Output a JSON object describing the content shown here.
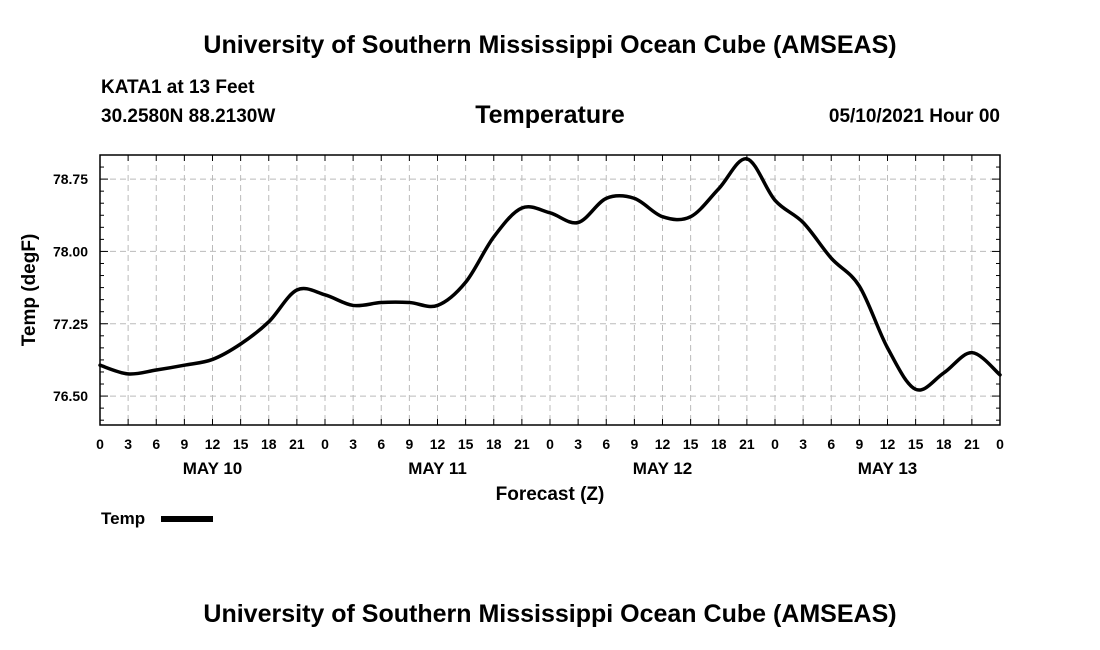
{
  "header": {
    "main_title": "University of Southern Mississippi Ocean Cube (AMSEAS)",
    "station": "KATA1 at 13 Feet",
    "coords": "30.2580N  88.2130W",
    "chart_title": "Temperature",
    "datetime": "05/10/2021 Hour 00"
  },
  "footer": {
    "title": "University of Southern Mississippi Ocean Cube (AMSEAS)"
  },
  "legend": {
    "label": "Temp",
    "color": "#000000"
  },
  "chart_data": {
    "type": "line",
    "title": "Temperature",
    "xlabel": "Forecast (Z)",
    "ylabel": "Temp (degF)",
    "ylim": [
      76.2,
      79.0
    ],
    "xlim": [
      0,
      96
    ],
    "yticks": [
      76.5,
      77.25,
      78.0,
      78.75
    ],
    "ytick_labels": [
      "76.50",
      "77.25",
      "78.00",
      "78.75"
    ],
    "xticks": [
      0,
      3,
      6,
      9,
      12,
      15,
      18,
      21,
      24,
      27,
      30,
      33,
      36,
      39,
      42,
      45,
      48,
      51,
      54,
      57,
      60,
      63,
      66,
      69,
      72,
      75,
      78,
      81,
      84,
      87,
      90,
      93,
      96
    ],
    "xtick_labels": [
      "0",
      "3",
      "6",
      "9",
      "12",
      "15",
      "18",
      "21",
      "0",
      "3",
      "6",
      "9",
      "12",
      "15",
      "18",
      "21",
      "0",
      "3",
      "6",
      "9",
      "12",
      "15",
      "18",
      "21",
      "0",
      "3",
      "6",
      "9",
      "12",
      "15",
      "18",
      "21",
      "0"
    ],
    "date_labels": [
      {
        "label": "MAY 10",
        "x": 12
      },
      {
        "label": "MAY 11",
        "x": 36
      },
      {
        "label": "MAY 12",
        "x": 60
      },
      {
        "label": "MAY 13",
        "x": 84
      }
    ],
    "grid": true,
    "series": [
      {
        "name": "Temp",
        "x": [
          0,
          3,
          6,
          9,
          12,
          15,
          18,
          21,
          24,
          27,
          30,
          33,
          36,
          39,
          42,
          45,
          48,
          51,
          54,
          57,
          60,
          63,
          66,
          69,
          72,
          75,
          78,
          81,
          84,
          87,
          90,
          93,
          96
        ],
        "values": [
          76.82,
          76.73,
          76.77,
          76.82,
          76.88,
          77.04,
          77.27,
          77.6,
          77.55,
          77.44,
          77.47,
          77.47,
          77.44,
          77.68,
          78.15,
          78.45,
          78.4,
          78.3,
          78.55,
          78.55,
          78.36,
          78.36,
          78.65,
          78.96,
          78.53,
          78.3,
          77.93,
          77.64,
          77.0,
          76.57,
          76.74,
          76.95,
          76.72
        ]
      }
    ]
  }
}
